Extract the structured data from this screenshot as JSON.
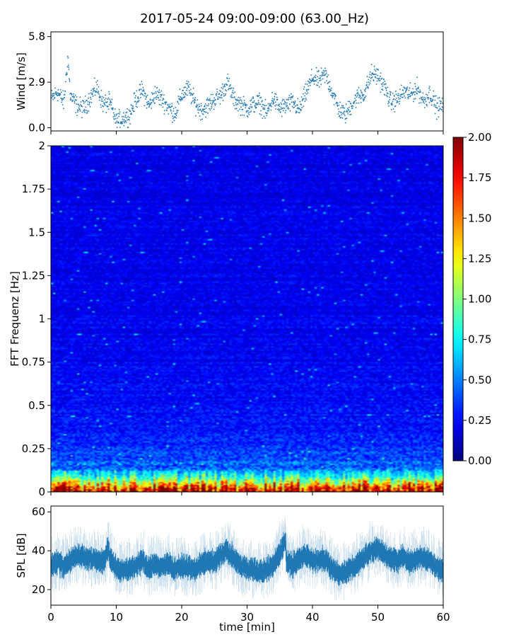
{
  "title": "2017-05-24 09:00-09:00 (63.00_Hz)",
  "colors": {
    "wind": "#1f77b4",
    "spl": "#1f77b4",
    "colormap": "jet"
  },
  "chart_data": [
    {
      "id": "wind",
      "type": "scatter",
      "ylabel": "Wind [m/s]",
      "xlabel": "",
      "xlim": [
        0,
        60
      ],
      "ylim": [
        -0.2,
        6.1
      ],
      "yticks": [
        0.0,
        2.9,
        5.8
      ],
      "ytick_labels": [
        "0.0",
        "2.9",
        "5.8"
      ],
      "xticks": [
        0,
        10,
        20,
        30,
        40,
        50,
        60
      ],
      "grid": false,
      "series": [
        {
          "x": [
            0,
            1,
            2,
            2.6,
            3,
            4,
            5,
            6,
            7,
            8,
            9,
            10,
            11,
            12,
            13,
            14,
            15,
            16,
            17,
            18,
            19,
            20,
            21,
            22,
            23,
            24,
            25,
            26,
            27,
            28,
            29,
            30,
            31,
            32,
            33,
            34,
            35,
            36,
            37,
            38,
            39,
            40,
            41,
            42,
            43,
            44,
            45,
            46,
            47,
            48,
            49,
            50,
            51,
            52,
            53,
            54,
            55,
            56,
            57,
            58,
            59,
            60
          ],
          "y": [
            1.8,
            2.3,
            1.6,
            4.5,
            2.0,
            1.4,
            1.2,
            1.9,
            2.6,
            1.5,
            1.6,
            0.4,
            0.6,
            0.8,
            1.8,
            2.4,
            1.4,
            2.2,
            1.8,
            1.3,
            0.9,
            2.1,
            2.5,
            1.6,
            1.1,
            1.4,
            1.8,
            2.1,
            2.9,
            1.8,
            1.5,
            1.2,
            1.5,
            1.6,
            0.9,
            1.9,
            1.2,
            1.4,
            1.6,
            1.1,
            2.2,
            3.2,
            3.0,
            3.4,
            2.3,
            1.2,
            0.8,
            1.5,
            2.0,
            2.2,
            3.4,
            3.3,
            2.6,
            1.6,
            1.8,
            2.3,
            2.1,
            2.5,
            1.7,
            2.2,
            1.3,
            1.4
          ]
        }
      ]
    },
    {
      "id": "spectrogram",
      "type": "heatmap",
      "ylabel": "FFT Frequenz [Hz]",
      "xlabel": "",
      "xlim": [
        0,
        60
      ],
      "ylim": [
        0,
        2
      ],
      "yticks": [
        0,
        0.25,
        0.5,
        0.75,
        1,
        1.25,
        1.5,
        1.75,
        2
      ],
      "ytick_labels": [
        "0",
        "0.25",
        "0.5",
        "0.75",
        "1",
        "1.25",
        "1.5",
        "1.75",
        "2"
      ],
      "colorbar": {
        "range": [
          0,
          2
        ],
        "ticks": [
          0,
          0.25,
          0.5,
          0.75,
          1,
          1.25,
          1.5,
          1.75,
          2
        ],
        "tick_labels": [
          "0.00",
          "0.25",
          "0.50",
          "0.75",
          "1.00",
          "1.25",
          "1.50",
          "1.75",
          "2.00"
        ]
      },
      "mean_profile": {
        "freq": [
          0,
          0.02,
          0.05,
          0.08,
          0.12,
          0.2,
          0.3,
          0.5,
          1.0,
          2.0
        ],
        "value": [
          1.85,
          1.55,
          1.15,
          0.8,
          0.55,
          0.4,
          0.32,
          0.27,
          0.24,
          0.22
        ]
      }
    },
    {
      "id": "spl",
      "type": "line",
      "ylabel": "SPL [dB]",
      "xlabel": "time [min]",
      "xlim": [
        0,
        60
      ],
      "ylim": [
        12,
        63
      ],
      "yticks": [
        20,
        40,
        60
      ],
      "ytick_labels": [
        "20",
        "40",
        "60"
      ],
      "xticks": [
        0,
        10,
        20,
        30,
        40,
        50,
        60
      ],
      "xtick_labels": [
        "0",
        "10",
        "20",
        "30",
        "40",
        "50",
        "60"
      ],
      "grid": false,
      "series": [
        {
          "x": [
            0,
            1,
            2,
            3,
            4,
            5,
            6,
            7,
            8,
            8.8,
            9,
            10,
            11,
            12,
            13,
            14,
            15,
            16,
            17,
            18,
            19,
            20,
            21,
            22,
            23,
            24,
            25,
            26,
            27,
            28,
            29,
            30,
            31,
            32,
            33,
            34,
            35,
            35.9,
            36,
            37,
            38,
            39,
            40,
            41,
            42,
            43,
            44,
            45,
            46,
            47,
            48,
            49,
            50,
            51,
            52,
            53,
            54,
            55,
            56,
            57,
            58,
            59,
            60
          ],
          "y": [
            33,
            34,
            32,
            35,
            38,
            37,
            36,
            35,
            34,
            42,
            37,
            31,
            30,
            31,
            32,
            35,
            31,
            33,
            32,
            33,
            31,
            32,
            31,
            30,
            33,
            35,
            34,
            38,
            40,
            36,
            32,
            31,
            30,
            29,
            30,
            33,
            39,
            46,
            34,
            33,
            36,
            38,
            35,
            36,
            35,
            31,
            28,
            29,
            31,
            34,
            37,
            40,
            41,
            38,
            36,
            35,
            37,
            34,
            36,
            37,
            35,
            32,
            29
          ]
        }
      ]
    }
  ]
}
